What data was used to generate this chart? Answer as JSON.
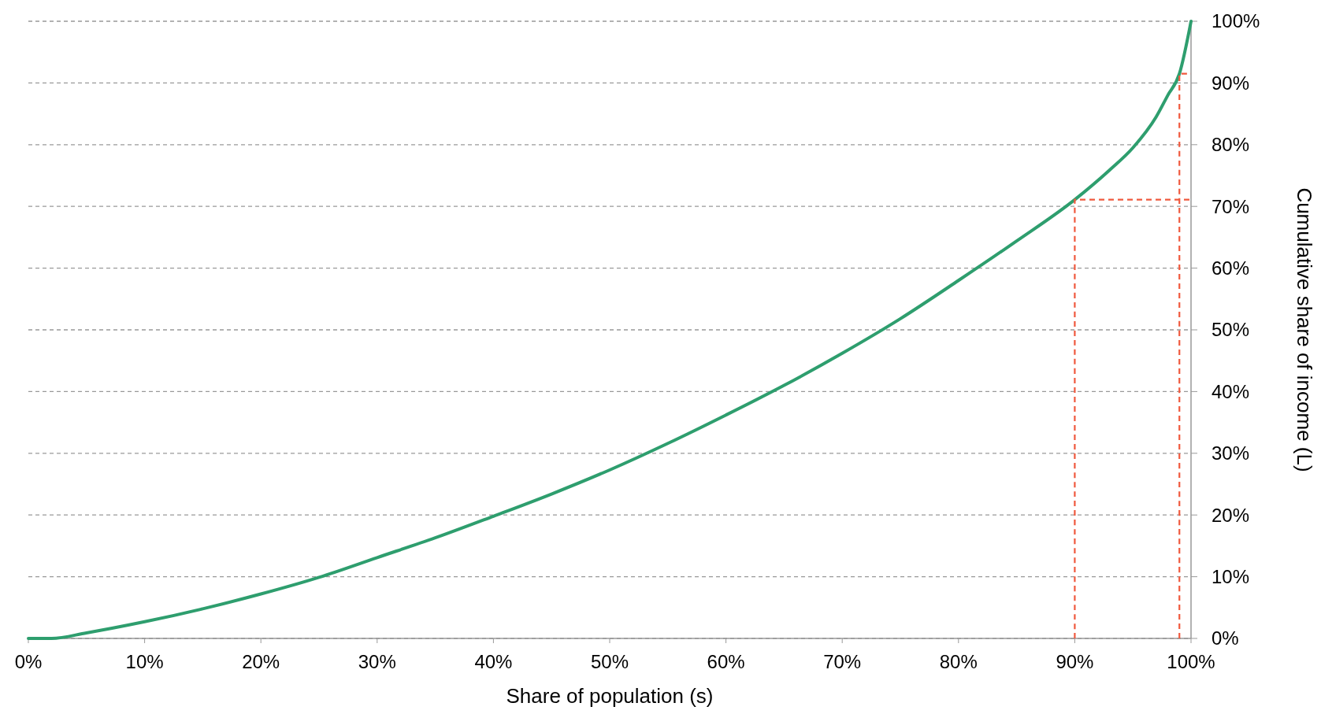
{
  "chart_data": {
    "type": "line",
    "xlabel": "Share of population (s)",
    "ylabel": "Cumulative share of income (L)",
    "xlim": [
      0,
      100
    ],
    "ylim": [
      0,
      100
    ],
    "xticks": [
      {
        "value": 0,
        "label": "0%"
      },
      {
        "value": 10,
        "label": "10%"
      },
      {
        "value": 20,
        "label": "20%"
      },
      {
        "value": 30,
        "label": "30%"
      },
      {
        "value": 40,
        "label": "40%"
      },
      {
        "value": 50,
        "label": "50%"
      },
      {
        "value": 60,
        "label": "60%"
      },
      {
        "value": 70,
        "label": "70%"
      },
      {
        "value": 80,
        "label": "80%"
      },
      {
        "value": 90,
        "label": "90%"
      },
      {
        "value": 100,
        "label": "100%"
      }
    ],
    "yticks": [
      {
        "value": 0,
        "label": "0%"
      },
      {
        "value": 10,
        "label": "10%"
      },
      {
        "value": 20,
        "label": "20%"
      },
      {
        "value": 30,
        "label": "30%"
      },
      {
        "value": 40,
        "label": "40%"
      },
      {
        "value": 50,
        "label": "50%"
      },
      {
        "value": 60,
        "label": "60%"
      },
      {
        "value": 70,
        "label": "70%"
      },
      {
        "value": 80,
        "label": "80%"
      },
      {
        "value": 90,
        "label": "90%"
      },
      {
        "value": 100,
        "label": "100%"
      }
    ],
    "grid": "y",
    "series": [
      {
        "color": "#2e9e6e",
        "line_style": "solid",
        "x": [
          0,
          2,
          5,
          10,
          15,
          20,
          25,
          30,
          35,
          40,
          45,
          50,
          55,
          60,
          65,
          70,
          75,
          80,
          85,
          90,
          93,
          95,
          97,
          98,
          99,
          100
        ],
        "values": [
          0,
          0,
          0.9,
          2.7,
          4.8,
          7.2,
          9.9,
          13.1,
          16.3,
          19.8,
          23.4,
          27.3,
          31.6,
          36.2,
          41,
          46.2,
          51.8,
          58,
          64.4,
          71.1,
          75.9,
          79.5,
          84.5,
          88,
          91.5,
          100
        ]
      },
      {
        "color": "#f0593e",
        "line_style": "dashed",
        "x": [
          90,
          90,
          100
        ],
        "values": [
          0,
          71.1,
          71.1
        ]
      },
      {
        "color": "#f0593e",
        "line_style": "dashed",
        "x": [
          99,
          99,
          100
        ],
        "values": [
          0,
          91.5,
          91.5
        ]
      }
    ]
  }
}
